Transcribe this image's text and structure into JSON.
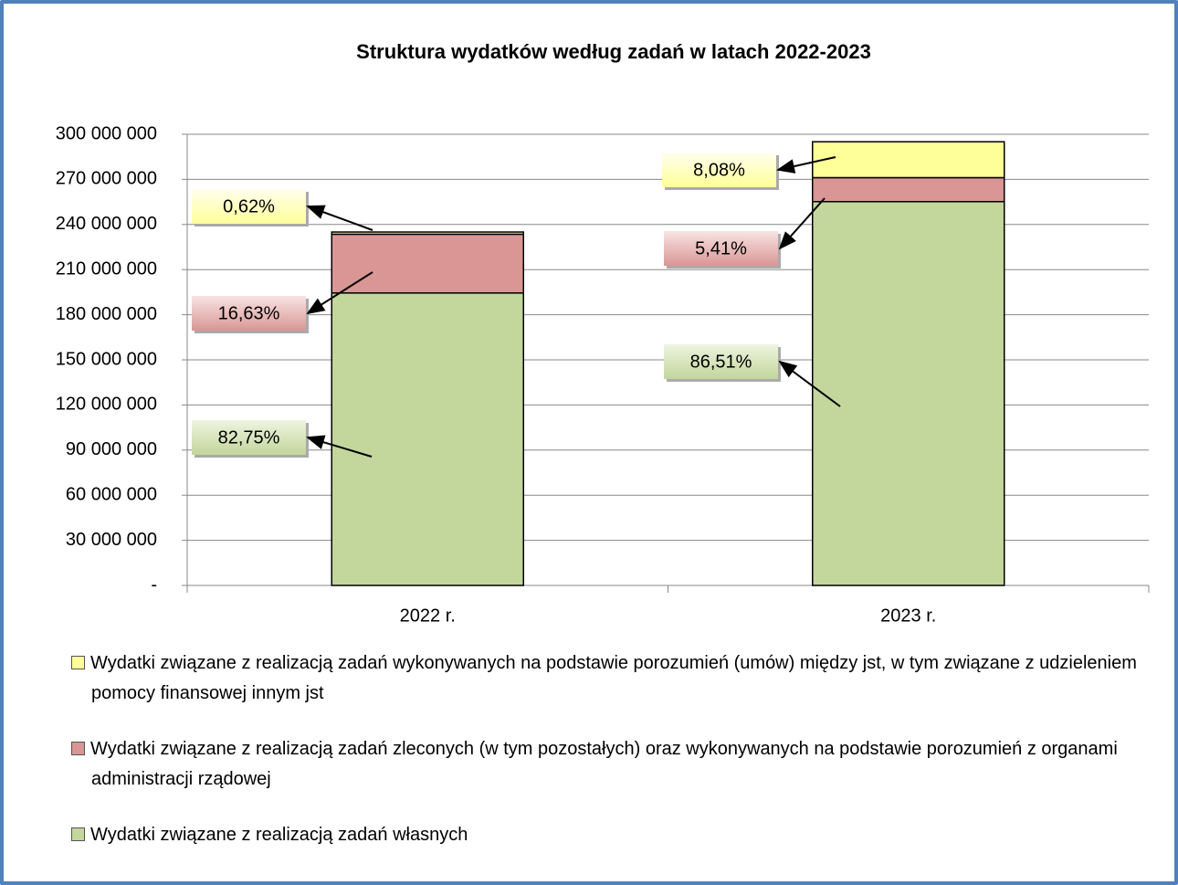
{
  "chart_data": {
    "type": "stacked_bar",
    "title": "Struktura wydatków według zadań w latach 2022-2023",
    "categories": [
      "2022 r.",
      "2023 r."
    ],
    "series": [
      {
        "name": "Wydatki związane z realizacją zadań własnych",
        "color": "#c3d69b",
        "values": [
          194460000,
          255200000
        ],
        "shares": [
          "82,75%",
          "86,51%"
        ]
      },
      {
        "name": "Wydatki związane z realizacją zadań zleconych (w tym pozostałych) oraz wykonywanych na podstawie porozumień z organami administracji rządowej",
        "color": "#d99694",
        "values": [
          39080000,
          15960000
        ],
        "shares": [
          "16,63%",
          "5,41%"
        ]
      },
      {
        "name": "Wydatki związane z realizacją zadań wykonywanych na podstawie porozumień (umów) między jst, w tym związane z udzieleniem pomocy finansowej innym jst",
        "color": "#ffff99",
        "values": [
          1460000,
          23840000
        ],
        "shares": [
          "0,62%",
          "8,08%"
        ]
      }
    ],
    "ylim": [
      0,
      300000000
    ],
    "yticks": [
      {
        "value": 0,
        "label": "-"
      },
      {
        "value": 30000000,
        "label": "30 000 000"
      },
      {
        "value": 60000000,
        "label": "60 000 000"
      },
      {
        "value": 90000000,
        "label": "90 000 000"
      },
      {
        "value": 120000000,
        "label": "120 000 000"
      },
      {
        "value": 150000000,
        "label": "150 000 000"
      },
      {
        "value": 180000000,
        "label": "180 000 000"
      },
      {
        "value": 210000000,
        "label": "210 000 000"
      },
      {
        "value": 240000000,
        "label": "240 000 000"
      },
      {
        "value": 270000000,
        "label": "270 000 000"
      },
      {
        "value": 300000000,
        "label": "300 000 000"
      }
    ],
    "grid": true
  }
}
